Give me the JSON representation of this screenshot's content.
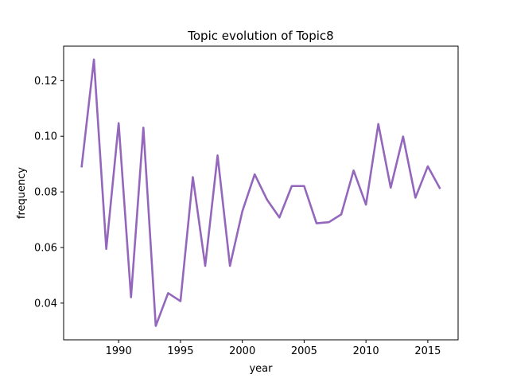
{
  "chart_data": {
    "type": "line",
    "title": "Topic evolution of Topic8",
    "xlabel": "year",
    "ylabel": "frequency",
    "xlim": [
      1985.55,
      2017.45
    ],
    "ylim": [
      0.0268,
      0.1324
    ],
    "xticks": [
      1990,
      1995,
      2000,
      2005,
      2010,
      2015
    ],
    "yticks": [
      0.04,
      0.06,
      0.08,
      0.1,
      0.12
    ],
    "ytick_labels": [
      "0.04",
      "0.06",
      "0.08",
      "0.10",
      "0.12"
    ],
    "grid": false,
    "series": [
      {
        "color": "#9467bd",
        "x": [
          1987,
          1988,
          1989,
          1990,
          1991,
          1992,
          1993,
          1994,
          1995,
          1996,
          1997,
          1998,
          1999,
          2000,
          2001,
          2002,
          2003,
          2004,
          2005,
          2006,
          2007,
          2008,
          2009,
          2010,
          2011,
          2012,
          2013,
          2014,
          2015,
          2016
        ],
        "y": [
          0.0888,
          0.1276,
          0.0595,
          0.1047,
          0.0421,
          0.1031,
          0.0318,
          0.0436,
          0.0407,
          0.0853,
          0.0534,
          0.0931,
          0.0534,
          0.073,
          0.0863,
          0.0772,
          0.0708,
          0.0821,
          0.0821,
          0.0687,
          0.0691,
          0.0719,
          0.0877,
          0.0754,
          0.1044,
          0.0815,
          0.0999,
          0.0779,
          0.0892,
          0.0811
        ]
      }
    ]
  }
}
